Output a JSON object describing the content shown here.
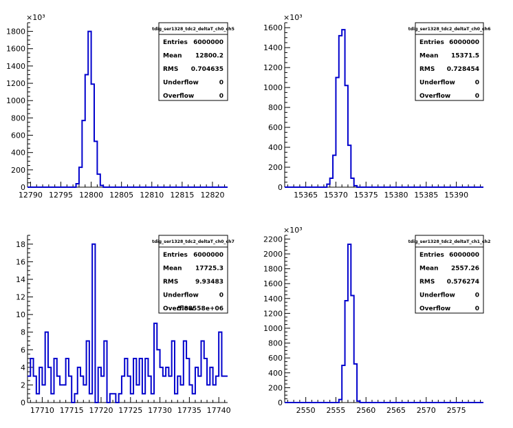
{
  "chart_data": [
    {
      "type": "histogram",
      "stats": {
        "title": "tdig_ser1328_tdc2_deltaT_ch0_ch5",
        "rows": [
          [
            "Entries",
            "6000000"
          ],
          [
            "Mean",
            "12800.2"
          ],
          [
            "RMS",
            "0.704635"
          ],
          [
            "Underflow",
            "0"
          ],
          [
            "Overflow",
            "0"
          ]
        ]
      },
      "exponent_label": "×10³",
      "xlim": [
        12789.5,
        12822.5
      ],
      "ylim": [
        0,
        1900
      ],
      "x_ticks": [
        12790,
        12795,
        12800,
        12805,
        12810,
        12815,
        12820
      ],
      "y_ticks": [
        0,
        200,
        400,
        600,
        800,
        1000,
        1200,
        1400,
        1600,
        1800
      ],
      "bins": [
        {
          "x": 12797.5,
          "y": 40
        },
        {
          "x": 12798.0,
          "y": 230
        },
        {
          "x": 12798.5,
          "y": 770
        },
        {
          "x": 12799.0,
          "y": 1300
        },
        {
          "x": 12799.5,
          "y": 1800
        },
        {
          "x": 12800.0,
          "y": 1190
        },
        {
          "x": 12800.5,
          "y": 530
        },
        {
          "x": 12801.0,
          "y": 150
        },
        {
          "x": 12801.5,
          "y": 20
        }
      ]
    },
    {
      "type": "histogram",
      "stats": {
        "title": "tdig_ser1328_tdc2_deltaT_ch0_ch6",
        "rows": [
          [
            "Entries",
            "6000000"
          ],
          [
            "Mean",
            "15371.5"
          ],
          [
            "RMS",
            "0.728454"
          ],
          [
            "Underflow",
            "0"
          ],
          [
            "Overflow",
            "0"
          ]
        ]
      },
      "exponent_label": "×10³",
      "xlim": [
        15361.5,
        15394.5
      ],
      "ylim": [
        0,
        1650
      ],
      "x_ticks": [
        15365,
        15370,
        15375,
        15380,
        15385,
        15390
      ],
      "y_ticks": [
        0,
        200,
        400,
        600,
        800,
        1000,
        1200,
        1400,
        1600
      ],
      "bins": [
        {
          "x": 15368.5,
          "y": 30
        },
        {
          "x": 15369.0,
          "y": 90
        },
        {
          "x": 15369.5,
          "y": 320
        },
        {
          "x": 15370.0,
          "y": 1100
        },
        {
          "x": 15370.5,
          "y": 1520
        },
        {
          "x": 15371.0,
          "y": 1580
        },
        {
          "x": 15371.5,
          "y": 1020
        },
        {
          "x": 15372.0,
          "y": 420
        },
        {
          "x": 15372.5,
          "y": 90
        },
        {
          "x": 15373.0,
          "y": 15
        }
      ]
    },
    {
      "type": "histogram",
      "stats": {
        "title": "tdig_ser1328_tdc2_deltaT_ch0_ch7",
        "rows": [
          [
            "Entries",
            "6000000"
          ],
          [
            "Mean",
            "17725.3"
          ],
          [
            "RMS",
            "9.93483"
          ],
          [
            "Underflow",
            "0"
          ],
          [
            "Overflow",
            "5.88558e+06"
          ]
        ]
      },
      "exponent_label": "",
      "xlim": [
        17707.5,
        17741.5
      ],
      "ylim": [
        0,
        19
      ],
      "x_ticks": [
        17710,
        17715,
        17720,
        17725,
        17730,
        17735,
        17740
      ],
      "y_ticks": [
        0,
        2,
        4,
        6,
        8,
        10,
        12,
        14,
        16,
        18
      ],
      "bins": [
        {
          "x": 17707.5,
          "y": 3
        },
        {
          "x": 17708.0,
          "y": 5
        },
        {
          "x": 17708.5,
          "y": 3
        },
        {
          "x": 17709.0,
          "y": 1
        },
        {
          "x": 17709.5,
          "y": 4
        },
        {
          "x": 17710.0,
          "y": 2
        },
        {
          "x": 17710.5,
          "y": 8
        },
        {
          "x": 17711.0,
          "y": 4
        },
        {
          "x": 17711.5,
          "y": 1
        },
        {
          "x": 17712.0,
          "y": 5
        },
        {
          "x": 17712.5,
          "y": 3
        },
        {
          "x": 17713.0,
          "y": 2
        },
        {
          "x": 17713.5,
          "y": 2
        },
        {
          "x": 17714.0,
          "y": 5
        },
        {
          "x": 17714.5,
          "y": 3
        },
        {
          "x": 17715.0,
          "y": 0
        },
        {
          "x": 17715.5,
          "y": 1
        },
        {
          "x": 17716.0,
          "y": 4
        },
        {
          "x": 17716.5,
          "y": 3
        },
        {
          "x": 17717.0,
          "y": 2
        },
        {
          "x": 17717.5,
          "y": 7
        },
        {
          "x": 17718.0,
          "y": 1
        },
        {
          "x": 17718.5,
          "y": 18
        },
        {
          "x": 17719.0,
          "y": 0
        },
        {
          "x": 17719.5,
          "y": 4
        },
        {
          "x": 17720.0,
          "y": 3
        },
        {
          "x": 17720.5,
          "y": 7
        },
        {
          "x": 17721.0,
          "y": 0
        },
        {
          "x": 17721.5,
          "y": 1
        },
        {
          "x": 17722.0,
          "y": 1
        },
        {
          "x": 17722.5,
          "y": 0
        },
        {
          "x": 17723.0,
          "y": 1
        },
        {
          "x": 17723.5,
          "y": 3
        },
        {
          "x": 17724.0,
          "y": 5
        },
        {
          "x": 17724.5,
          "y": 3
        },
        {
          "x": 17725.0,
          "y": 1
        },
        {
          "x": 17725.5,
          "y": 5
        },
        {
          "x": 17726.0,
          "y": 2
        },
        {
          "x": 17726.5,
          "y": 5
        },
        {
          "x": 17727.0,
          "y": 1
        },
        {
          "x": 17727.5,
          "y": 5
        },
        {
          "x": 17728.0,
          "y": 3
        },
        {
          "x": 17728.5,
          "y": 1
        },
        {
          "x": 17729.0,
          "y": 9
        },
        {
          "x": 17729.5,
          "y": 6
        },
        {
          "x": 17730.0,
          "y": 4
        },
        {
          "x": 17730.5,
          "y": 3
        },
        {
          "x": 17731.0,
          "y": 4
        },
        {
          "x": 17731.5,
          "y": 3
        },
        {
          "x": 17732.0,
          "y": 7
        },
        {
          "x": 17732.5,
          "y": 1
        },
        {
          "x": 17733.0,
          "y": 3
        },
        {
          "x": 17733.5,
          "y": 2
        },
        {
          "x": 17734.0,
          "y": 7
        },
        {
          "x": 17734.5,
          "y": 5
        },
        {
          "x": 17735.0,
          "y": 2
        },
        {
          "x": 17735.5,
          "y": 1
        },
        {
          "x": 17736.0,
          "y": 4
        },
        {
          "x": 17736.5,
          "y": 3
        },
        {
          "x": 17737.0,
          "y": 7
        },
        {
          "x": 17737.5,
          "y": 5
        },
        {
          "x": 17738.0,
          "y": 2
        },
        {
          "x": 17738.5,
          "y": 4
        },
        {
          "x": 17739.0,
          "y": 2
        },
        {
          "x": 17739.5,
          "y": 3
        },
        {
          "x": 17740.0,
          "y": 8
        },
        {
          "x": 17740.5,
          "y": 3
        },
        {
          "x": 17741.0,
          "y": 3
        }
      ]
    },
    {
      "type": "histogram",
      "stats": {
        "title": "tdig_ser1328_tdc2_deltaT_ch1_ch2",
        "rows": [
          [
            "Entries",
            "6000000"
          ],
          [
            "Mean",
            "2557.26"
          ],
          [
            "RMS",
            "0.576274"
          ],
          [
            "Underflow",
            "0"
          ],
          [
            "Overflow",
            "0"
          ]
        ]
      },
      "exponent_label": "×10³",
      "xlim": [
        2546.5,
        2579.5
      ],
      "ylim": [
        0,
        2250
      ],
      "x_ticks": [
        2550,
        2555,
        2560,
        2565,
        2570,
        2575
      ],
      "y_ticks": [
        0,
        200,
        400,
        600,
        800,
        1000,
        1200,
        1400,
        1600,
        1800,
        2000,
        2200
      ],
      "bins": [
        {
          "x": 2555.5,
          "y": 40
        },
        {
          "x": 2556.0,
          "y": 500
        },
        {
          "x": 2556.5,
          "y": 1370
        },
        {
          "x": 2557.0,
          "y": 2130
        },
        {
          "x": 2557.5,
          "y": 1440
        },
        {
          "x": 2558.0,
          "y": 520
        },
        {
          "x": 2558.5,
          "y": 20
        }
      ]
    }
  ],
  "colors": {
    "histogram_line": "#0000cc",
    "axis": "#000000",
    "background": "#ffffff"
  }
}
